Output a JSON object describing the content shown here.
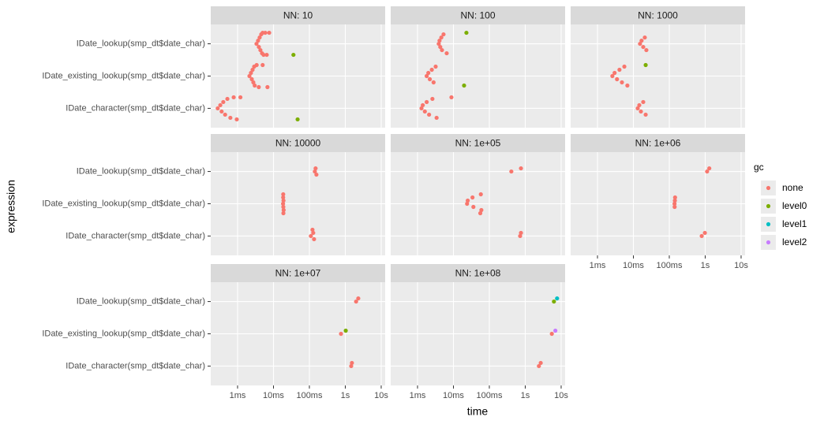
{
  "chart_data": {
    "type": "scatter",
    "x_label": "time",
    "y_label": "expression",
    "categories": [
      "IDate_lookup(smp_dt$date_char)",
      "IDate_existing_lookup(smp_dt$date_char)",
      "IDate_character(smp_dt$date_char)"
    ],
    "log_x": true,
    "grid": true,
    "xlim": [
      0.000179,
      12.9
    ],
    "xticks": [
      {
        "value": 0.001,
        "label": "1ms"
      },
      {
        "value": 0.01,
        "label": "10ms"
      },
      {
        "value": 0.1,
        "label": "100ms"
      },
      {
        "value": 1,
        "label": "1s"
      },
      {
        "value": 10,
        "label": "10s"
      }
    ],
    "legend_title": "gc",
    "legend_position": "right",
    "series": [
      {
        "name": "none",
        "color": "#F8766D"
      },
      {
        "name": "level0",
        "color": "#7CAE00"
      },
      {
        "name": "level1",
        "color": "#00BFC4"
      },
      {
        "name": "level2",
        "color": "#C77CFF"
      }
    ],
    "facets": [
      {
        "title": "NN: 10",
        "series": [
          {
            "values": [
              [
                0.00337,
                0.00372,
                0.00392,
                0.00412,
                0.00433,
                0.00456,
                0.0048,
                0.005,
                0.0053,
                0.0059,
                0.0065,
                0.0076
              ],
              [
                0.00214,
                0.00236,
                0.00249,
                0.00262,
                0.00275,
                0.0029,
                0.003,
                0.0034,
                0.0039,
                0.005,
                0.0068
              ],
              [
                0.00028,
                0.00033,
                0.00036,
                0.0004,
                0.00045,
                0.00052,
                0.00063,
                0.00078,
                0.00095,
                0.0012
              ]
            ]
          },
          {
            "values": [
              [
                0.036
              ],
              [],
              [
                0.047
              ]
            ]
          },
          {
            "values": [
              [],
              [],
              []
            ]
          },
          {
            "values": [
              [],
              [],
              []
            ]
          }
        ]
      },
      {
        "title": "NN: 100",
        "series": [
          {
            "values": [
              [
                0.0039,
                0.0041,
                0.0043,
                0.0046,
                0.0048,
                0.0053,
                0.0065
              ],
              [
                0.0018,
                0.002,
                0.0022,
                0.0025,
                0.0028,
                0.0032
              ],
              [
                0.00129,
                0.0014,
                0.0016,
                0.0018,
                0.0021,
                0.0026,
                0.0034,
                0.0088
              ]
            ]
          },
          {
            "values": [
              [
                0.023
              ],
              [
                0.0198
              ],
              []
            ]
          },
          {
            "values": [
              [],
              [],
              []
            ]
          },
          {
            "values": [
              [],
              [],
              []
            ]
          }
        ]
      },
      {
        "title": "NN: 1000",
        "series": [
          {
            "values": [
              [
                0.0153,
                0.0169,
                0.0188,
                0.0208,
                0.023
              ],
              [
                0.0026,
                0.003,
                0.0035,
                0.0041,
                0.0048,
                0.0056,
                0.0068
              ],
              [
                0.0132,
                0.0146,
                0.0162,
                0.0188,
                0.022
              ]
            ]
          },
          {
            "values": [
              [],
              [
                0.022
              ],
              []
            ]
          },
          {
            "values": [
              [],
              [],
              []
            ]
          },
          {
            "values": [
              [],
              [],
              []
            ]
          }
        ]
      },
      {
        "title": "NN: 10000",
        "series": [
          {
            "values": [
              [
                0.142,
                0.149,
                0.157
              ],
              [
                0.0185,
                0.019,
                0.0188,
                0.0186,
                0.0192,
                0.0187,
                0.0189
              ],
              [
                0.11,
                0.128,
                0.135,
                0.122
              ]
            ]
          },
          {
            "values": [
              [],
              [],
              []
            ]
          },
          {
            "values": [
              [],
              [],
              []
            ]
          },
          {
            "values": [
              [],
              [],
              []
            ]
          }
        ]
      },
      {
        "title": "NN: 1e+05",
        "series": [
          {
            "values": [
              [
                0.41,
                0.76
              ],
              [
                0.024,
                0.025,
                0.036,
                0.034,
                0.06,
                0.058,
                0.056
              ],
              [
                0.72,
                0.76
              ]
            ]
          },
          {
            "values": [
              [],
              [],
              []
            ]
          },
          {
            "values": [
              [],
              [],
              []
            ]
          },
          {
            "values": [
              [],
              [],
              []
            ]
          }
        ]
      },
      {
        "title": "NN: 1e+06",
        "series": [
          {
            "values": [
              [
                1.13,
                1.3
              ],
              [
                0.14,
                0.143,
                0.141,
                0.145
              ],
              [
                0.8,
                0.98
              ]
            ]
          },
          {
            "values": [
              [],
              [],
              []
            ]
          },
          {
            "values": [
              [],
              [],
              []
            ]
          },
          {
            "values": [
              [],
              [],
              []
            ]
          }
        ]
      },
      {
        "title": "NN: 1e+07",
        "series": [
          {
            "values": [
              [
                2.0,
                2.3
              ],
              [
                0.76
              ],
              [
                1.46,
                1.53
              ]
            ]
          },
          {
            "values": [
              [],
              [
                1.03
              ],
              []
            ]
          },
          {
            "values": [
              [],
              [],
              []
            ]
          },
          {
            "values": [
              [],
              [],
              []
            ]
          }
        ]
      },
      {
        "title": "NN: 1e+08",
        "series": [
          {
            "values": [
              [],
              [
                5.5
              ],
              [
                2.4,
                2.7
              ]
            ]
          },
          {
            "values": [
              [
                6.3
              ],
              [],
              []
            ]
          },
          {
            "values": [
              [
                7.7
              ],
              [],
              []
            ]
          },
          {
            "values": [
              [],
              [
                6.9
              ],
              []
            ]
          }
        ]
      }
    ]
  }
}
